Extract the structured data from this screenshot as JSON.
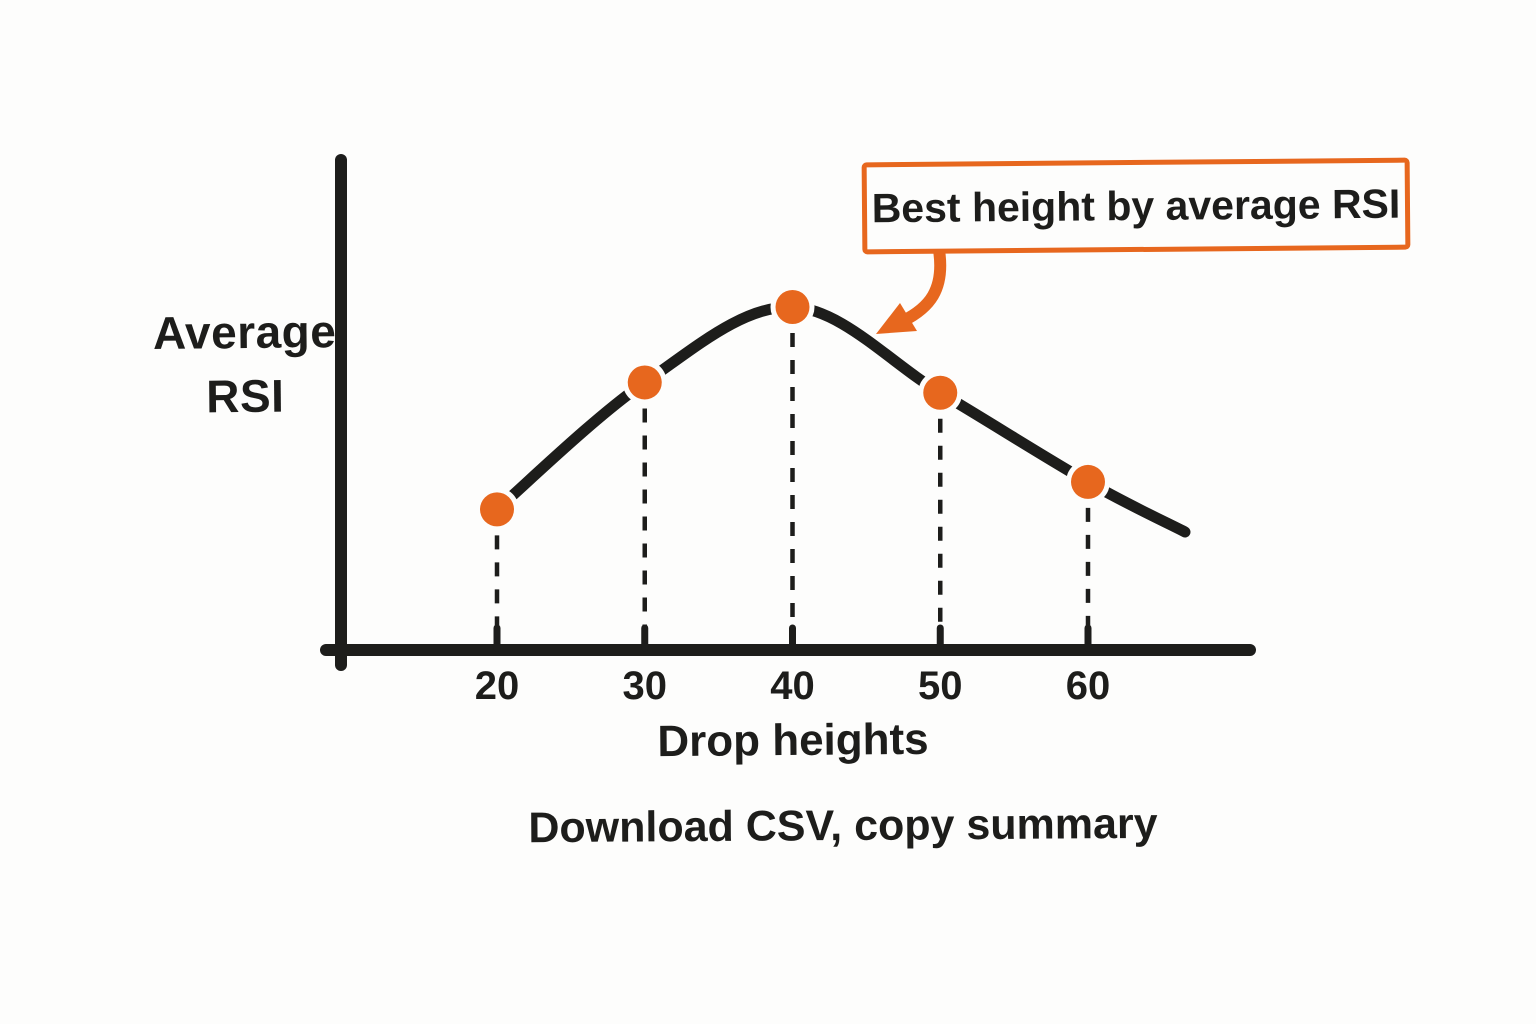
{
  "page": {
    "background_color": "#FDFDFC",
    "ink_color": "#1D1D1B",
    "accent_color": "#E7671E",
    "style": "hand-drawn sketch chart"
  },
  "chart_data": {
    "type": "line",
    "title": "",
    "xlabel": "Drop heights",
    "ylabel": "Average RSI",
    "ylabel_lines": [
      "Average",
      "RSI"
    ],
    "categories": [
      20,
      30,
      40,
      50,
      60
    ],
    "series": [
      {
        "name": "Average RSI",
        "values_relative_peak_100": [
          41,
          78,
          100,
          75,
          49
        ]
      }
    ],
    "x_tick_labels": [
      "20",
      "30",
      "40",
      "50",
      "60"
    ],
    "y_tick_labels": [],
    "grid": false,
    "legend": false,
    "marker_color": "#E7671E",
    "line_color": "#1D1D1B",
    "dropline_style": "dashed vertical lines from each point to x-axis",
    "peak_category": 40,
    "annotation": {
      "text": "Best height by average RSI",
      "points_to_category": 40,
      "arrow_color": "#E7671E"
    }
  },
  "footer": {
    "text": "Download CSV, copy summary"
  }
}
